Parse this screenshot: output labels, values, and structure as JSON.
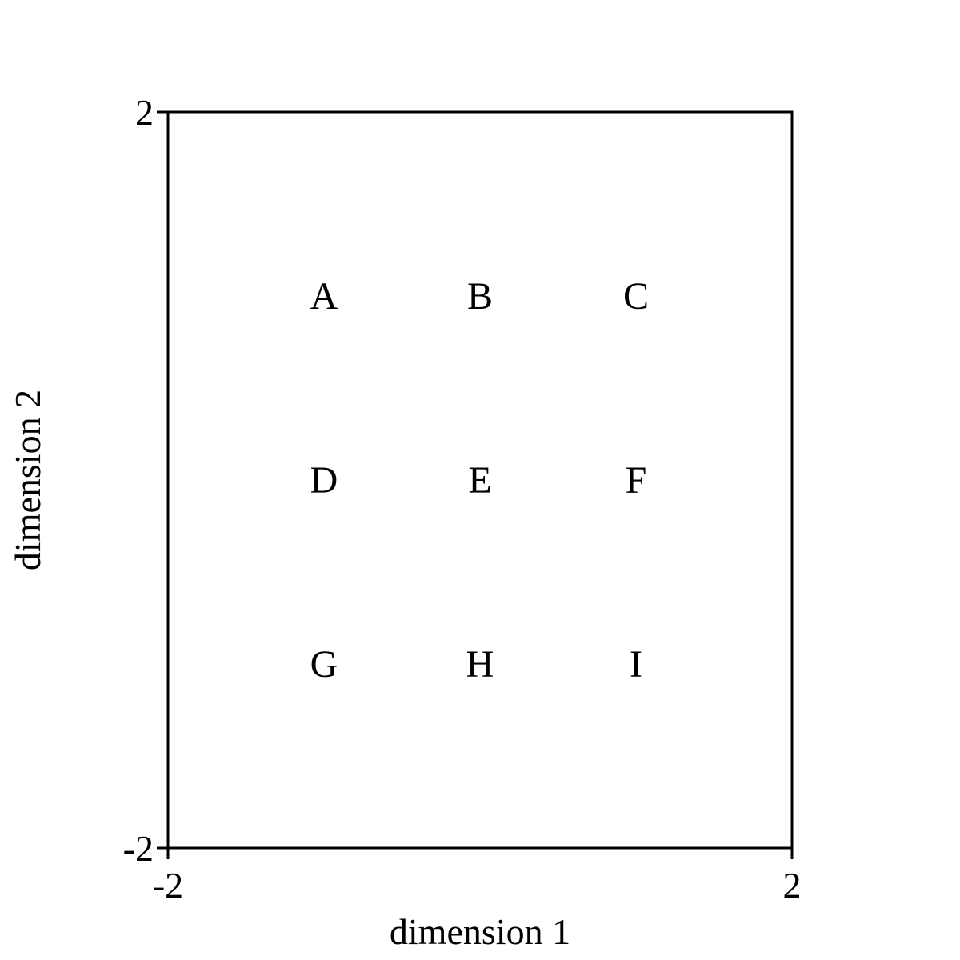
{
  "chart_data": {
    "type": "scatter",
    "title": "",
    "xlabel": "dimension 1",
    "ylabel": "dimension 2",
    "xlim": [
      -2,
      2
    ],
    "ylim": [
      -2,
      2
    ],
    "x_ticks": [
      "-2",
      "2"
    ],
    "y_ticks": [
      "-2",
      "2"
    ],
    "grid": false,
    "marker": "text-label",
    "points": [
      {
        "label": "A",
        "x": -1,
        "y": 1
      },
      {
        "label": "B",
        "x": 0,
        "y": 1
      },
      {
        "label": "C",
        "x": 1,
        "y": 1
      },
      {
        "label": "D",
        "x": -1,
        "y": 0
      },
      {
        "label": "E",
        "x": 0,
        "y": 0
      },
      {
        "label": "F",
        "x": 1,
        "y": 0
      },
      {
        "label": "G",
        "x": -1,
        "y": -1
      },
      {
        "label": "H",
        "x": 0,
        "y": -1
      },
      {
        "label": "I",
        "x": 1,
        "y": -1
      }
    ],
    "colors": {
      "text": "#000000",
      "axes": "#000000",
      "background": "#ffffff"
    }
  }
}
